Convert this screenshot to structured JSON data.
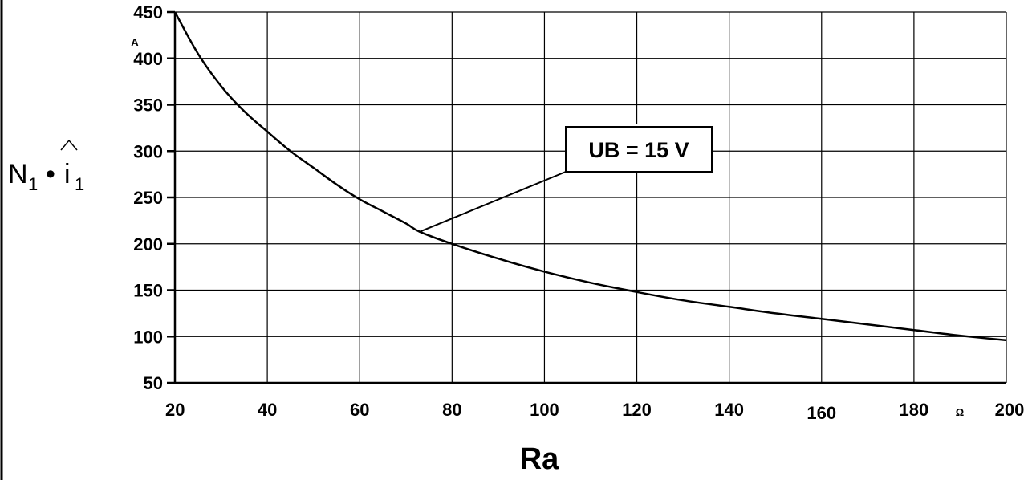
{
  "chart_data": {
    "type": "line",
    "xlabel": "Ra",
    "x_unit": "Ω",
    "ylabel_main": "N",
    "ylabel_sub": "1",
    "ylabel_mid": "•",
    "ylabel_i": "i",
    "ylabel_i_sub": "1",
    "y_unit": "A",
    "xlim": [
      20,
      200
    ],
    "ylim": [
      50,
      450
    ],
    "x_ticks": [
      20,
      40,
      60,
      80,
      100,
      120,
      140,
      160,
      180,
      200
    ],
    "y_ticks": [
      50,
      100,
      150,
      200,
      250,
      300,
      350,
      400,
      450
    ],
    "grid": true,
    "annotation": {
      "text": "UB = 15 V",
      "points_to": [
        73,
        213
      ]
    },
    "series": [
      {
        "x": [
          20,
          25,
          30,
          35,
          40,
          45,
          50,
          55,
          60,
          65,
          70,
          73,
          80,
          90,
          100,
          110,
          120,
          130,
          140,
          150,
          160,
          170,
          180,
          190,
          200
        ],
        "y": [
          450,
          405,
          370,
          343,
          321,
          300,
          282,
          264,
          248,
          235,
          222,
          213,
          200,
          184,
          170,
          158,
          148,
          139,
          132,
          125,
          119,
          113,
          107,
          101,
          96
        ]
      }
    ]
  }
}
